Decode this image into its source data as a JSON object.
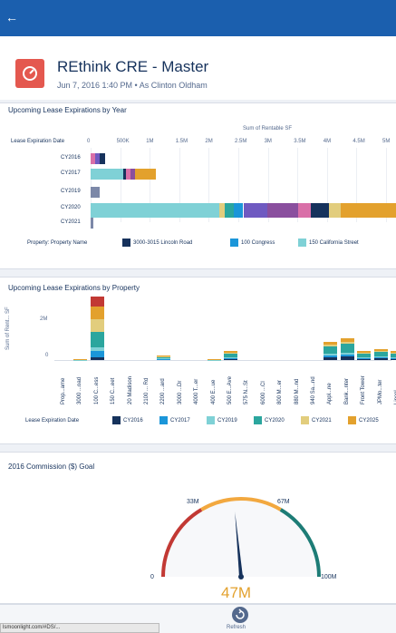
{
  "topbar": {
    "back_glyph": "←"
  },
  "header": {
    "title": "REthink CRE - Master",
    "subtitle": "Jun 7, 2016 1:40 PM • As Clinton Oldham",
    "icon": "dashboard-icon",
    "icon_color": "#e4584f"
  },
  "card1": {
    "title": "Upcoming Lease Expirations by Year",
    "axis_title": "Sum of Rentable SF",
    "row_header": "Lease Expiration Date",
    "ticks": [
      "0",
      "500K",
      "1M",
      "1.5M",
      "2M",
      "2.5M",
      "3M",
      "3.5M",
      "4M",
      "4.5M",
      "5M"
    ],
    "rows": [
      "CY2016",
      "CY2017",
      "CY2019",
      "CY2020",
      "CY2021"
    ],
    "legend_title": "Property: Property Name",
    "legend": [
      "3000-3015 Lincoln Road",
      "100 Congress",
      "150 California Street"
    ]
  },
  "card2": {
    "title": "Upcoming Lease Expirations by Property",
    "ylabel": "Sum of Rent... SF",
    "yticks": [
      "2M",
      "0"
    ],
    "categories": [
      "Prop...ame",
      "3000 ...oad",
      "100 C...ess",
      "150 C...eet",
      "20 Madison",
      "2100 ... Rd",
      "2200 ...ard",
      "3000 ...Dr",
      "4000 T...er",
      "400 E...ue",
      "500 E...Ave",
      "575 N...St",
      "6000 ...Cl",
      "800 M...er",
      "880 M...nd",
      "940 Sa...nd",
      "Appl...ne",
      "Bank...nter",
      "Front Tower",
      "JPMo...ter",
      "Lincol..."
    ],
    "legend_title": "Lease Expiration Date",
    "legend": [
      "CY2016",
      "CY2017",
      "CY2019",
      "CY2020",
      "CY2021",
      "CY2025"
    ]
  },
  "card3": {
    "title": "2016 Commission ($) Goal",
    "min_label": "0",
    "max_label": "100M",
    "mark1": "33M",
    "mark2": "67M",
    "value_text": "47M",
    "value": 47,
    "max": 100
  },
  "bottom": {
    "url": "lsmoonlight.com/#DS/...",
    "refresh_label": "Refresh"
  },
  "colors": {
    "brand": "#1b5fae",
    "cy2016": "#16325c",
    "cy2017": "#1b96d9",
    "cy2019": "#7fd1d6",
    "cy2020": "#2ba69e",
    "cy2021": "#e2cd7d",
    "cy2025": "#e3a12d",
    "gauge_red": "#c23934",
    "gauge_orange": "#f2a83f",
    "gauge_green": "#1d7c76"
  },
  "chart_data": [
    {
      "type": "bar",
      "title": "Upcoming Lease Expirations by Year",
      "orientation": "horizontal",
      "stacked": true,
      "xlabel": "Sum of Rentable SF",
      "ylabel": "Lease Expiration Date",
      "categories": [
        "CY2016",
        "CY2017",
        "CY2019",
        "CY2020",
        "CY2021"
      ],
      "totals": [
        250000,
        1100000,
        150000,
        5200000,
        50000
      ],
      "xlim": [
        0,
        5000000
      ]
    },
    {
      "type": "bar",
      "title": "Upcoming Lease Expirations by Property",
      "stacked": true,
      "ylabel": "Sum of Rent... SF",
      "categories": [
        "Prop...ame",
        "3000 ...oad",
        "100 C...ess",
        "150 C...eet",
        "20 Madison",
        "2100 ... Rd",
        "2200 ...ard",
        "3000 ...Dr",
        "4000 T...er",
        "400 E...ue",
        "500 E...Ave",
        "575 N...St",
        "6000 ...Cl",
        "800 M...er",
        "880 M...nd",
        "940 Sa...nd",
        "Appl...ne",
        "Bank...nter",
        "Front Tower",
        "JPMo...ter",
        "Lincol..."
      ],
      "totals": [
        0,
        50000,
        3500000,
        0,
        0,
        0,
        250000,
        0,
        0,
        50000,
        500000,
        0,
        0,
        0,
        0,
        0,
        1000000,
        1200000,
        500000,
        600000,
        500000
      ],
      "ylim": [
        0,
        3500000
      ]
    },
    {
      "type": "gauge",
      "title": "2016 Commission ($) Goal",
      "value": 47,
      "min": 0,
      "max": 100,
      "bands": [
        33,
        67,
        100
      ]
    }
  ]
}
